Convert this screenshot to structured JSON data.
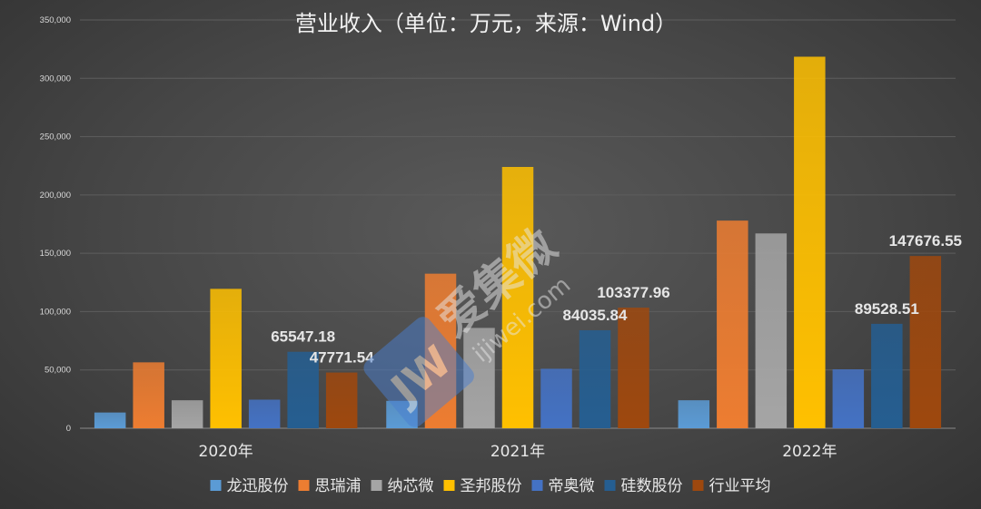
{
  "chart_data": {
    "type": "bar",
    "title": "营业收入（单位：万元，来源：Wind）",
    "categories": [
      "2020年",
      "2021年",
      "2022年"
    ],
    "ylim": [
      0,
      350000
    ],
    "yticks": [
      0,
      50000,
      100000,
      150000,
      200000,
      250000,
      300000,
      350000
    ],
    "ytick_labels": [
      "0",
      "50,000",
      "100,000",
      "150,000",
      "200,000",
      "250,000",
      "300,000",
      "350,000"
    ],
    "grid": true,
    "legend_position": "bottom",
    "series": [
      {
        "name": "龙迅股份",
        "color": "#5b9bd5",
        "values": [
          13500,
          23500,
          24000
        ]
      },
      {
        "name": "思瑞浦",
        "color": "#ed7d31",
        "values": [
          56500,
          132500,
          178000
        ]
      },
      {
        "name": "纳芯微",
        "color": "#a5a5a5",
        "values": [
          24000,
          86000,
          167000
        ]
      },
      {
        "name": "圣邦股份",
        "color": "#ffc000",
        "values": [
          119500,
          224000,
          318500
        ]
      },
      {
        "name": "帝奥微",
        "color": "#4472c4",
        "values": [
          24500,
          51000,
          50500
        ]
      },
      {
        "name": "硅数股份",
        "color": "#255e91",
        "values": [
          65547.18,
          84035.84,
          89528.51
        ]
      },
      {
        "name": "行业平均",
        "color": "#9e480e",
        "values": [
          47771.54,
          103377.96,
          147676.55
        ]
      }
    ],
    "data_labels": [
      {
        "series": "硅数股份",
        "category": "2020年",
        "text": "65547.18"
      },
      {
        "series": "行业平均",
        "category": "2020年",
        "text": "47771.54"
      },
      {
        "series": "硅数股份",
        "category": "2021年",
        "text": "84035.84"
      },
      {
        "series": "行业平均",
        "category": "2021年",
        "text": "103377.96"
      },
      {
        "series": "硅数股份",
        "category": "2022年",
        "text": "89528.51"
      },
      {
        "series": "行业平均",
        "category": "2022年",
        "text": "147676.55"
      }
    ]
  },
  "watermark": {
    "logo_text": "JW",
    "brand_text": "爱集微",
    "url_text": "ijiwei.com",
    "color": "#4a7fd0"
  }
}
